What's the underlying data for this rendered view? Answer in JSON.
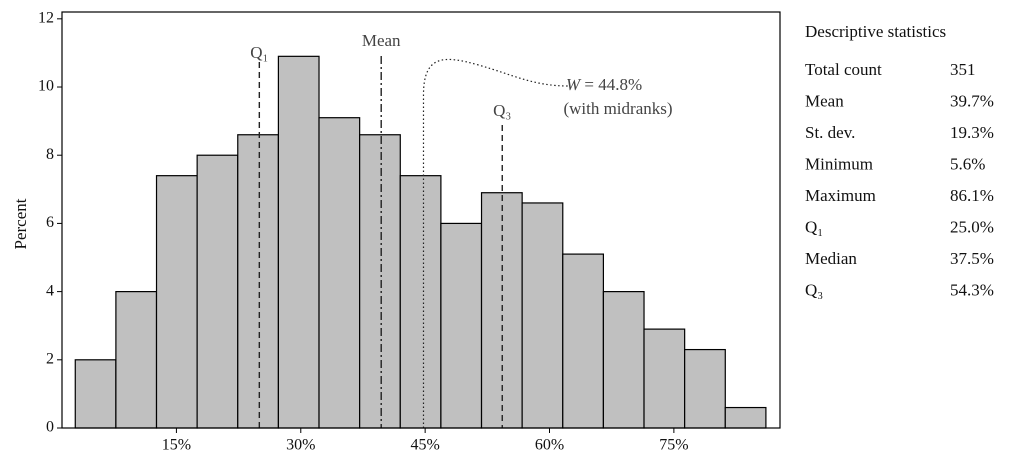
{
  "chart_data": {
    "type": "histogram",
    "ylabel": "Percent",
    "bins": [
      2.8,
      7.7,
      12.6,
      17.5,
      22.4,
      27.3,
      32.2,
      37.1,
      42.0,
      46.9,
      51.8,
      56.7,
      61.6,
      66.5,
      71.4,
      76.3,
      81.2,
      86.1
    ],
    "values": [
      2.0,
      4.0,
      7.4,
      8.0,
      8.6,
      10.9,
      9.1,
      8.6,
      7.4,
      6.0,
      6.9,
      6.6,
      5.1,
      4.0,
      2.9,
      2.3,
      0.6
    ],
    "color": "#c0c0c0",
    "xlim": [
      1.2,
      87.8
    ],
    "xticks": [
      {
        "value": 15,
        "label": "15%"
      },
      {
        "value": 30,
        "label": "30%"
      },
      {
        "value": 45,
        "label": "45%"
      },
      {
        "value": 60,
        "label": "60%"
      },
      {
        "value": 75,
        "label": "75%"
      }
    ],
    "ylim": [
      0,
      12.2
    ],
    "yticks": [
      0,
      2,
      4,
      6,
      8,
      10,
      12
    ],
    "markers": [
      {
        "label": "Q₁",
        "value": 25.0,
        "style": "dashed"
      },
      {
        "label": "Mean",
        "value": 39.7,
        "style": "dashdot"
      },
      {
        "label": "Q₃",
        "value": 54.3,
        "style": "dashed"
      }
    ],
    "w_marker": {
      "var": "W",
      "text": " = 44.8%",
      "note": "(with midranks)",
      "value": 44.8,
      "style": "dotted"
    }
  },
  "stats": {
    "title": "Descriptive statistics",
    "rows": [
      [
        "Total count",
        "351"
      ],
      [
        "Mean",
        "39.7%"
      ],
      [
        "St. dev.",
        "19.3%"
      ],
      [
        "Minimum",
        "5.6%"
      ],
      [
        "Maximum",
        "86.1%"
      ],
      [
        "Q₁",
        "25.0%"
      ],
      [
        "Median",
        "37.5%"
      ],
      [
        "Q₃",
        "54.3%"
      ]
    ]
  }
}
